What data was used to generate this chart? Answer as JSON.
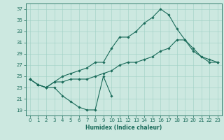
{
  "title": "",
  "xlabel": "Humidex (Indice chaleur)",
  "ylabel": "",
  "bg_color": "#cce8e0",
  "grid_color": "#9ecfc5",
  "line_color": "#1a6b5a",
  "xlim": [
    -0.5,
    23.5
  ],
  "ylim": [
    18,
    38
  ],
  "yticks": [
    19,
    21,
    23,
    25,
    27,
    29,
    31,
    33,
    35,
    37
  ],
  "xticks": [
    0,
    1,
    2,
    3,
    4,
    5,
    6,
    7,
    8,
    9,
    10,
    11,
    12,
    13,
    14,
    15,
    16,
    17,
    18,
    19,
    20,
    21,
    22,
    23
  ],
  "series": [
    [
      24.5,
      23.5,
      23.0,
      23.0,
      21.5,
      20.5,
      19.5,
      19.0,
      19.0,
      25.0,
      21.5,
      null,
      null,
      null,
      null,
      null,
      null,
      null,
      null,
      null,
      null,
      null,
      null,
      null
    ],
    [
      24.5,
      23.5,
      23.0,
      24.0,
      24.0,
      24.5,
      24.5,
      24.5,
      25.0,
      25.5,
      26.0,
      27.0,
      27.5,
      27.5,
      28.0,
      28.5,
      29.5,
      30.0,
      31.5,
      31.5,
      30.0,
      28.5,
      28.0,
      27.5
    ],
    [
      24.5,
      23.5,
      23.0,
      24.0,
      25.0,
      25.5,
      26.0,
      26.5,
      27.5,
      27.5,
      30.0,
      32.0,
      32.0,
      33.0,
      34.5,
      35.5,
      37.0,
      36.0,
      33.5,
      31.5,
      29.5,
      28.5,
      27.5,
      27.5
    ]
  ],
  "tick_fontsize": 5.0,
  "xlabel_fontsize": 5.5,
  "marker_size": 1.8,
  "linewidth": 0.8
}
